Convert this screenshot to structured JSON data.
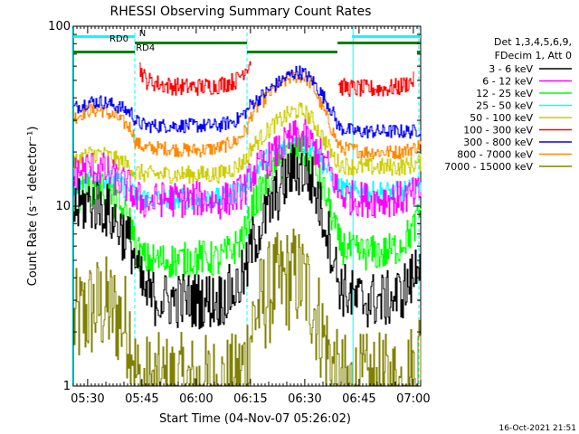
{
  "chart_data": {
    "type": "line",
    "title": "RHESSI Observing Summary Count Rates",
    "xlabel": "Start Time (04-Nov-07 05:26:02)",
    "ylabel": "Count Rate (s⁻¹ detector⁻¹)",
    "x_unit": "minutes after 05:26:02",
    "xlim": [
      0,
      96
    ],
    "ylim": [
      1,
      100
    ],
    "yscale": "log",
    "x_ticks": [
      {
        "label": "05:30",
        "value": 3.97
      },
      {
        "label": "05:45",
        "value": 18.97
      },
      {
        "label": "06:00",
        "value": 33.97
      },
      {
        "label": "06:15",
        "value": 48.97
      },
      {
        "label": "06:30",
        "value": 63.97
      },
      {
        "label": "06:45",
        "value": 78.97
      },
      {
        "label": "07:00",
        "value": 93.97
      }
    ],
    "y_ticks": [
      {
        "label": "1",
        "value": 1
      },
      {
        "label": "10",
        "value": 10
      },
      {
        "label": "100",
        "value": 100
      }
    ],
    "legend_header": [
      "Det 1,3,4,5,6,9,",
      "FDecim 1, Att 0"
    ],
    "legend_placement": "right",
    "x": [
      0,
      4,
      8,
      12,
      16,
      17,
      18,
      20,
      25,
      30,
      35,
      40,
      45,
      48,
      49,
      50,
      55,
      60,
      62,
      64,
      66,
      70,
      72,
      73,
      74,
      78,
      80,
      82,
      86,
      90,
      94,
      96
    ],
    "series": [
      {
        "name": "3 - 6 keV",
        "color": "#000000",
        "noise": 0.16,
        "values": [
          9.5,
          10.5,
          10.0,
          8.0,
          6.0,
          5.0,
          4.0,
          3.2,
          3.0,
          3.0,
          3.0,
          3.0,
          3.5,
          4.5,
          6.0,
          6.5,
          10.5,
          15.5,
          16.0,
          15.5,
          13.5,
          7.5,
          5.0,
          4.0,
          3.5,
          3.0,
          3.0,
          3.0,
          3.0,
          3.2,
          4.0,
          6.0
        ]
      },
      {
        "name": "6 - 12 keV",
        "color": "#ff00ff",
        "noise": 0.1,
        "values": [
          15.0,
          16.5,
          16.0,
          14.0,
          12.5,
          10.5,
          11.0,
          10.5,
          11.0,
          10.8,
          11.0,
          10.5,
          11.5,
          13.0,
          15.0,
          15.5,
          19.0,
          23.5,
          24.5,
          24.0,
          22.0,
          17.0,
          14.0,
          12.0,
          11.5,
          11.0,
          11.0,
          10.8,
          11.0,
          11.0,
          11.5,
          12.0
        ]
      },
      {
        "name": "12 - 25 keV",
        "color": "#00ff00",
        "noise": 0.1,
        "values": [
          11.0,
          12.5,
          12.5,
          10.0,
          8.0,
          6.0,
          5.5,
          5.0,
          5.0,
          5.0,
          5.2,
          5.0,
          6.0,
          7.5,
          9.5,
          10.5,
          15.0,
          20.0,
          20.5,
          20.0,
          17.0,
          11.0,
          8.0,
          6.5,
          6.0,
          5.5,
          5.5,
          5.5,
          5.5,
          6.0,
          7.5,
          9.5
        ]
      },
      {
        "name": "25 - 50 keV",
        "color": "#00ffff",
        "noise": 0.06,
        "values": [
          13.0,
          14.5,
          14.5,
          13.5,
          12.0,
          11.0,
          11.5,
          11.0,
          11.0,
          11.0,
          11.0,
          11.0,
          12.0,
          13.5,
          15.0,
          16.0,
          19.5,
          22.0,
          22.5,
          22.0,
          20.5,
          16.0,
          13.5,
          13.0,
          12.5,
          12.0,
          12.0,
          12.0,
          12.0,
          12.0,
          12.5,
          13.0
        ]
      },
      {
        "name": "50 - 100 keV",
        "color": "#cccc00",
        "noise": 0.05,
        "values": [
          17.5,
          19.5,
          19.5,
          18.0,
          16.5,
          15.0,
          15.5,
          15.0,
          15.0,
          15.0,
          15.0,
          15.0,
          16.5,
          18.5,
          21.0,
          22.0,
          28.0,
          33.0,
          34.0,
          33.0,
          30.0,
          22.0,
          18.5,
          17.5,
          17.0,
          16.5,
          16.5,
          16.5,
          16.5,
          16.5,
          17.0,
          17.5
        ]
      },
      {
        "name": "100 - 300 keV",
        "color": "#ff0000",
        "noise": 0.05,
        "values": [
          null,
          null,
          null,
          null,
          null,
          null,
          60.0,
          50.0,
          47.0,
          46.0,
          46.0,
          47.0,
          50.0,
          60.0,
          65.0,
          null,
          null,
          null,
          null,
          null,
          null,
          null,
          null,
          48.0,
          46.0,
          45.0,
          45.0,
          45.0,
          45.0,
          46.0,
          50.0,
          null
        ]
      },
      {
        "name": "300 - 800 keV",
        "color": "#0000ff",
        "noise": 0.04,
        "values": [
          35.0,
          38.0,
          38.0,
          36.0,
          33.0,
          30.0,
          29.0,
          28.0,
          28.0,
          28.0,
          28.0,
          28.0,
          30.0,
          34.0,
          37.0,
          38.0,
          46.0,
          54.0,
          56.0,
          54.0,
          50.0,
          38.0,
          32.0,
          28.0,
          27.0,
          26.0,
          26.0,
          26.0,
          26.0,
          26.0,
          26.0,
          27.0
        ]
      },
      {
        "name": "800 - 7000 keV",
        "color": "#ff8800",
        "noise": 0.04,
        "values": [
          31.0,
          34.0,
          34.0,
          31.0,
          27.0,
          23.0,
          22.0,
          21.0,
          21.0,
          20.5,
          20.5,
          21.0,
          23.0,
          27.0,
          32.0,
          34.0,
          44.0,
          52.0,
          53.0,
          52.0,
          47.0,
          31.0,
          25.0,
          22.0,
          21.0,
          20.5,
          20.0,
          20.0,
          20.0,
          20.0,
          21.0,
          22.0
        ]
      },
      {
        "name": "7000 - 15000 keV",
        "color": "#808000",
        "noise": 0.3,
        "values": [
          2.2,
          2.6,
          2.8,
          2.5,
          2.0,
          1.2,
          1.0,
          1.0,
          1.0,
          1.0,
          1.0,
          1.0,
          1.0,
          1.5,
          2.0,
          2.5,
          3.5,
          4.0,
          4.0,
          3.6,
          3.0,
          1.6,
          1.2,
          1.0,
          1.0,
          1.0,
          1.0,
          1.0,
          1.0,
          1.0,
          1.2,
          1.6
        ]
      }
    ],
    "flags": [
      {
        "label": "N",
        "color": "#00ffff",
        "segments": [
          [
            0,
            17
          ],
          [
            77,
            96
          ]
        ]
      },
      {
        "label": "RD0",
        "color": "#008000",
        "segments": [
          [
            17,
            48
          ],
          [
            73,
            96
          ]
        ]
      },
      {
        "label": "RD4",
        "color": "#008000",
        "segments": [
          [
            0,
            17
          ],
          [
            48,
            73
          ],
          [
            95,
            96
          ]
        ]
      }
    ],
    "grid": false,
    "vertical_markers": [
      {
        "x": -0.2,
        "color": "#00ffff",
        "style": "solid"
      },
      {
        "x": 17.0,
        "color": "#00ffff",
        "style": "dashed"
      },
      {
        "x": 48.0,
        "color": "#00ffff",
        "style": "dashed"
      },
      {
        "x": 77.3,
        "color": "#00ffff",
        "style": "solid"
      },
      {
        "x": 95.5,
        "color": "#00ffff",
        "style": "dashed"
      }
    ],
    "footer": "16-Oct-2021 21:51"
  }
}
